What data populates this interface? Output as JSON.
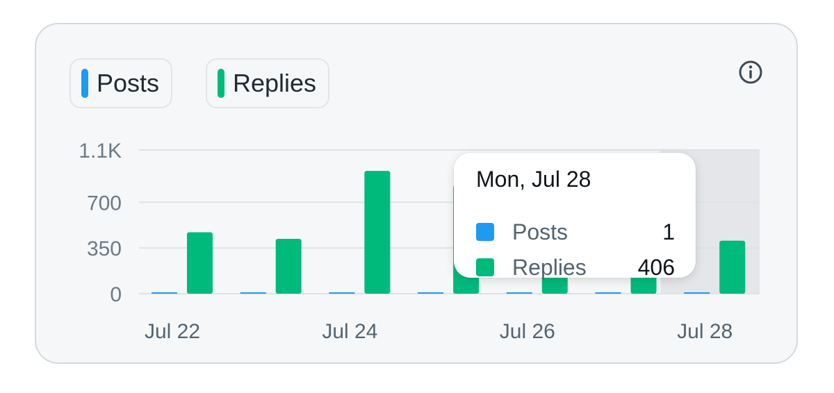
{
  "legend": {
    "posts_label": "Posts",
    "replies_label": "Replies"
  },
  "info_icon": "info-circle-icon",
  "colors": {
    "posts": "#1d9bf0",
    "replies": "#00ba7c",
    "grid": "#dde3e8",
    "tick": "#6b7a87",
    "highlight": "#e4e6e9"
  },
  "tooltip": {
    "title": "Mon, Jul 28",
    "rows": [
      {
        "name": "Posts",
        "value": "1"
      },
      {
        "name": "Replies",
        "value": "406"
      }
    ]
  },
  "chart_data": {
    "type": "bar",
    "categories": [
      "Jul 22",
      "Jul 23",
      "Jul 24",
      "Jul 25",
      "Jul 26",
      "Jul 27",
      "Jul 28"
    ],
    "series": [
      {
        "name": "Posts",
        "values": [
          2,
          2,
          1,
          3,
          2,
          2,
          1
        ]
      },
      {
        "name": "Replies",
        "values": [
          470,
          420,
          940,
          830,
          890,
          860,
          406
        ]
      }
    ],
    "x_tick_labels": [
      "Jul 22",
      "Jul 24",
      "Jul 26",
      "Jul 28"
    ],
    "y_tick_labels": [
      "0",
      "350",
      "700",
      "1.1K"
    ],
    "y_tick_values": [
      0,
      350,
      700,
      1100
    ],
    "ylim": [
      0,
      1100
    ],
    "highlighted_category": "Jul 28",
    "grid": true,
    "legend_position": "top-left"
  }
}
